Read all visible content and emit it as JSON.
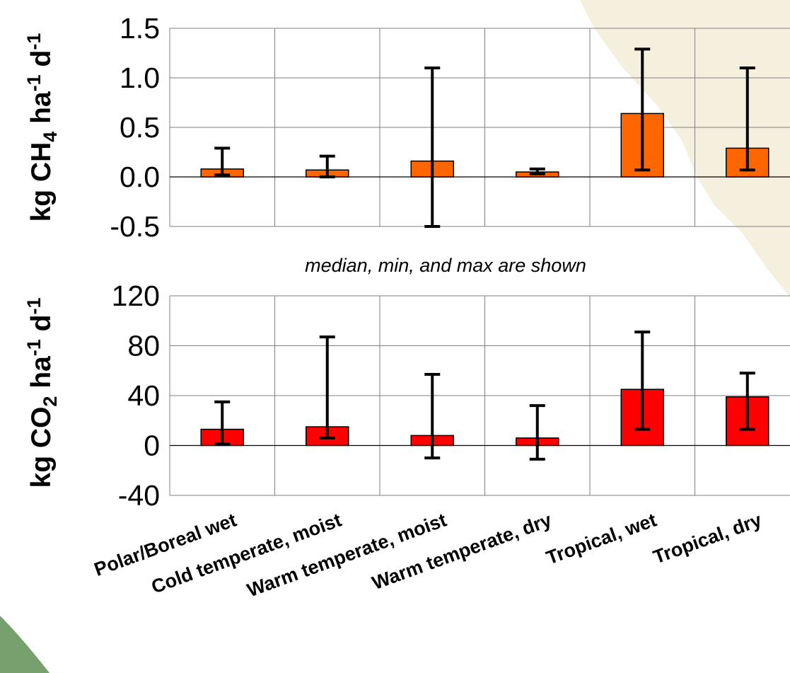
{
  "colors": {
    "ch4_bar": "#ff6600",
    "co2_bar": "#ff0000",
    "bar_outline": "#000000",
    "error_bar": "#000000",
    "gridline": "#7f7f7f",
    "background_map_fill": "#f3ebd6",
    "background_map_accent": "#78a06e"
  },
  "note": "median, min, and max are shown",
  "categories": [
    "Polar/Boreal wet",
    "Cold temperate, moist",
    "Warm temperate, moist",
    "Warm temperate, dry",
    "Tropical, wet",
    "Tropical, dry"
  ],
  "chart_data": [
    {
      "type": "bar",
      "ylabel_parts": [
        "kg CH",
        "4",
        " ha",
        "-1",
        " d",
        "-1"
      ],
      "ylim": [
        -0.5,
        1.5
      ],
      "yticks": [
        -0.5,
        0.0,
        0.5,
        1.0,
        1.5
      ],
      "ytick_labels": [
        "-0.5",
        "0.0",
        "0.5",
        "1.0",
        "1.5"
      ],
      "grid": true,
      "categories": [
        "Polar/Boreal wet",
        "Cold temperate, moist",
        "Warm temperate, moist",
        "Warm temperate, dry",
        "Tropical, wet",
        "Tropical, dry"
      ],
      "values": [
        0.08,
        0.07,
        0.16,
        0.05,
        0.64,
        0.29
      ],
      "min": [
        0.02,
        0.0,
        -0.5,
        0.03,
        0.07,
        0.07
      ],
      "max": [
        0.29,
        0.21,
        1.1,
        0.08,
        1.29,
        1.1
      ]
    },
    {
      "type": "bar",
      "ylabel_parts": [
        "kg CO",
        "2",
        " ha",
        "-1",
        " d",
        "-1"
      ],
      "ylim": [
        -40,
        120
      ],
      "yticks": [
        -40,
        0,
        40,
        80,
        120
      ],
      "ytick_labels": [
        "-40",
        "0",
        "40",
        "80",
        "120"
      ],
      "grid": true,
      "categories": [
        "Polar/Boreal wet",
        "Cold temperate, moist",
        "Warm temperate, moist",
        "Warm temperate, dry",
        "Tropical, wet",
        "Tropical, dry"
      ],
      "values": [
        13,
        15,
        8,
        6,
        45,
        39
      ],
      "min": [
        1,
        6,
        -10,
        -11,
        13,
        13
      ],
      "max": [
        35,
        87,
        57,
        32,
        91,
        58
      ]
    }
  ]
}
